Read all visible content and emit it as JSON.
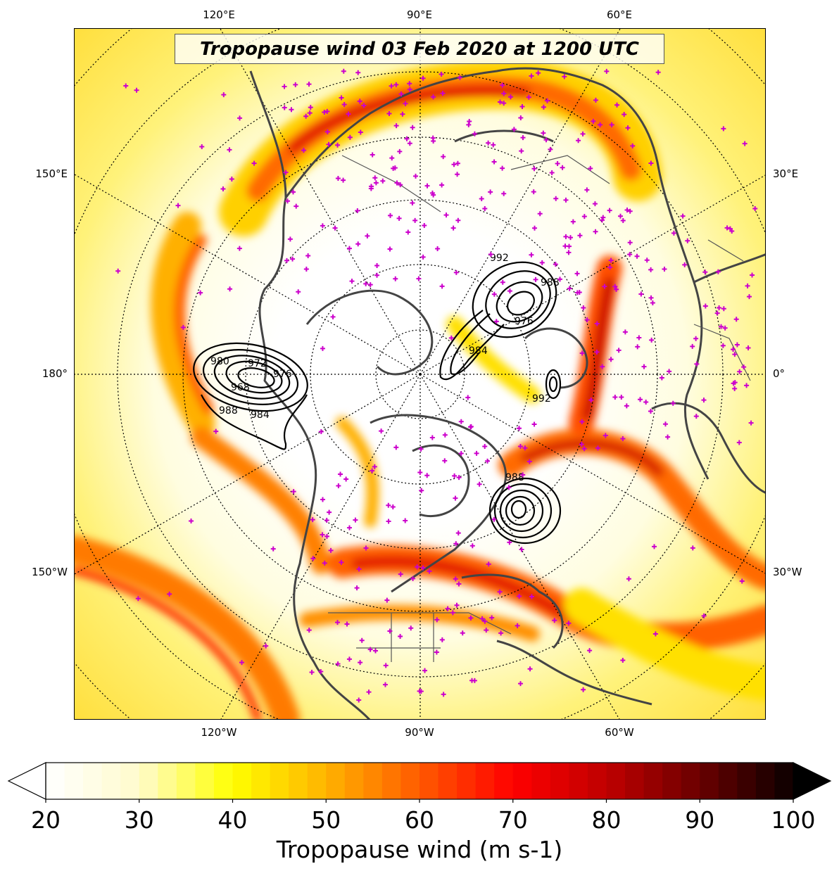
{
  "title": "Tropopause wind 03 Feb 2020 at 1200 UTC",
  "projection": "north-polar-stereographic",
  "lon_labels_top": [
    "120°E",
    "90°E",
    "60°E"
  ],
  "lon_labels_bottom": [
    "120°W",
    "90°W",
    "60°W"
  ],
  "lon_labels_left": [
    "150°E",
    "180°",
    "150°W"
  ],
  "lon_labels_right": [
    "30°E",
    "0°",
    "30°W"
  ],
  "colorbar": {
    "label": "Tropopause wind (m s-1)",
    "ticks": [
      "20",
      "30",
      "40",
      "50",
      "60",
      "70",
      "80",
      "90",
      "100"
    ],
    "min": 20,
    "max": 100,
    "extend": "both",
    "colormap": "hot_r",
    "colors": [
      "#ffffff",
      "#fffbcc",
      "#ffff00",
      "#ffb300",
      "#ff5a00",
      "#ff0000",
      "#bf0000",
      "#6a0000",
      "#0a0000"
    ]
  },
  "pressure_contours": {
    "color": "#000000",
    "labels_shown": [
      "980",
      "972",
      "976",
      "968",
      "988",
      "984",
      "992",
      "988",
      "984",
      "976",
      "992",
      "988"
    ]
  },
  "colors": {
    "coastline": "#444444",
    "grid": "#000000",
    "station_marker": "#cc00cc"
  }
}
